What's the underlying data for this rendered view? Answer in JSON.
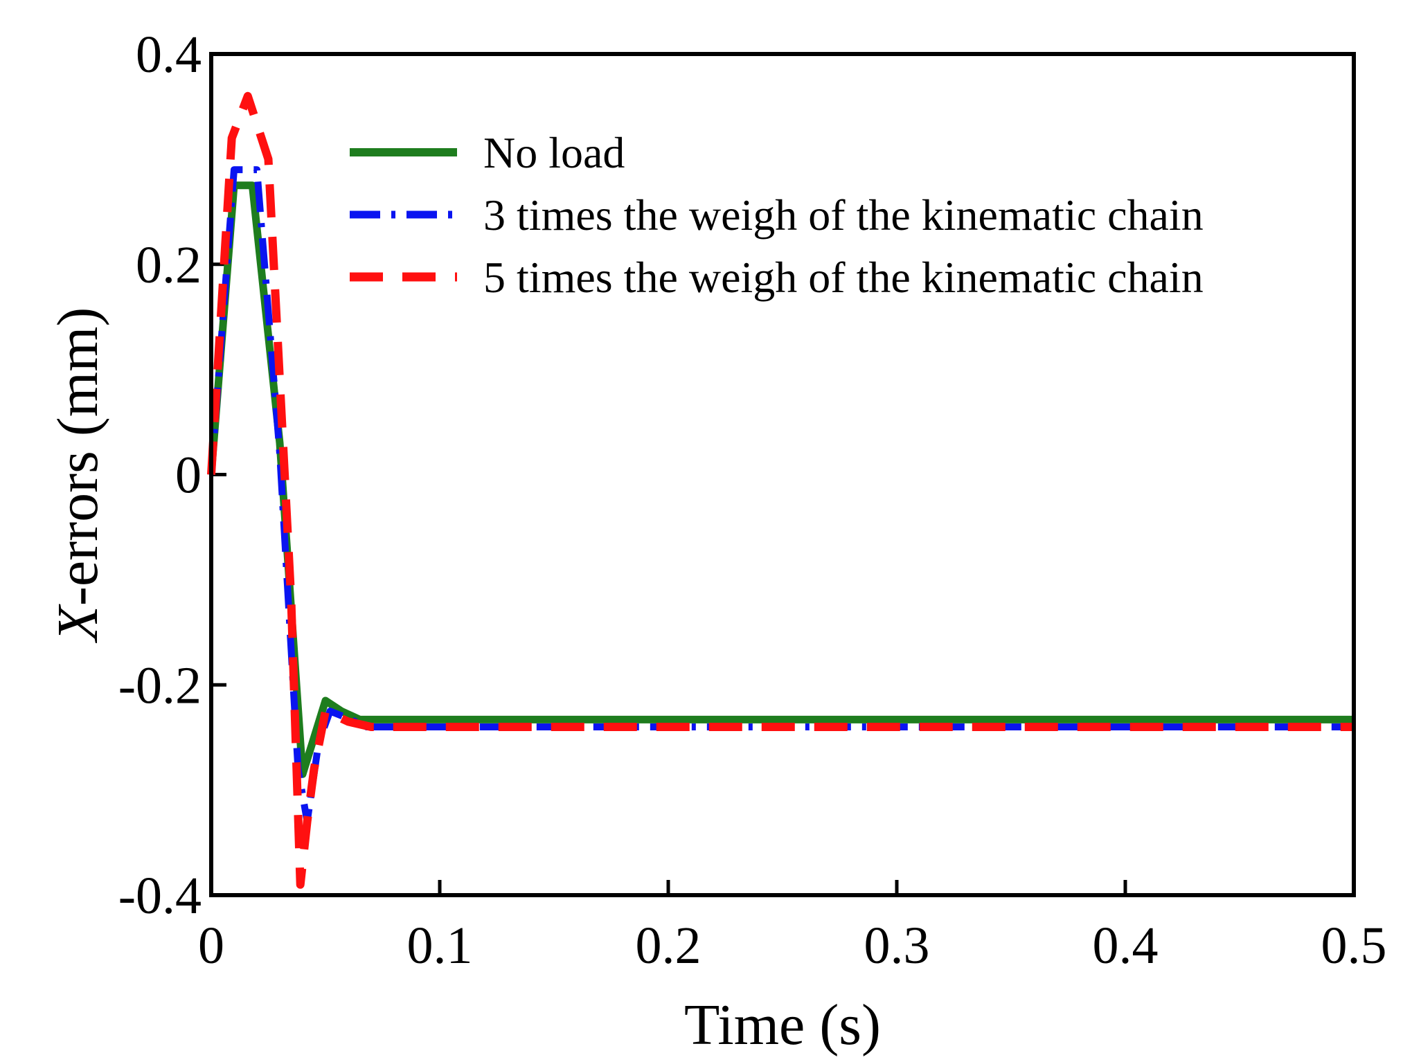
{
  "chart_data": {
    "type": "line",
    "title": "",
    "xlabel": "Time (s)",
    "ylabel_italic": "X",
    "ylabel_rest": "-errors (mm)",
    "xlim": [
      0,
      0.5
    ],
    "ylim": [
      -0.4,
      0.4
    ],
    "xticks": [
      0,
      0.1,
      0.2,
      0.3,
      0.4,
      0.5
    ],
    "xtick_labels": [
      "0",
      "0.1",
      "0.2",
      "0.3",
      "0.4",
      "0.5"
    ],
    "yticks": [
      -0.4,
      -0.2,
      0,
      0.2,
      0.4
    ],
    "ytick_labels": [
      "-0.4",
      "-0.2",
      "0",
      "0.2",
      "0.4"
    ],
    "grid": false,
    "legend_position": "top-right",
    "series": [
      {
        "name": "No load",
        "color": "#1e7d1e",
        "style": "solid",
        "x": [
          0,
          0.01,
          0.018,
          0.03,
          0.04,
          0.045,
          0.05,
          0.057,
          0.065,
          0.08,
          0.5
        ],
        "y": [
          0,
          0.275,
          0.275,
          0.03,
          -0.285,
          -0.25,
          -0.215,
          -0.225,
          -0.233,
          -0.233,
          -0.233
        ]
      },
      {
        "name": "3 times the weigh of the kinematic chain",
        "color": "#0a14f0",
        "style": "dashdot",
        "x": [
          0,
          0.01,
          0.02,
          0.03,
          0.038,
          0.042,
          0.047,
          0.052,
          0.06,
          0.068,
          0.08,
          0.5
        ],
        "y": [
          0,
          0.29,
          0.29,
          0.02,
          -0.28,
          -0.33,
          -0.255,
          -0.225,
          -0.232,
          -0.24,
          -0.24,
          -0.24
        ]
      },
      {
        "name": "5 times the weigh of the kinematic chain",
        "color": "#ff1010",
        "style": "dashed",
        "x": [
          0,
          0.009,
          0.016,
          0.025,
          0.035,
          0.039,
          0.042,
          0.045,
          0.05,
          0.06,
          0.07,
          0.5
        ],
        "y": [
          0,
          0.32,
          0.36,
          0.3,
          -0.12,
          -0.39,
          -0.33,
          -0.28,
          -0.225,
          -0.235,
          -0.24,
          -0.24
        ]
      }
    ]
  }
}
